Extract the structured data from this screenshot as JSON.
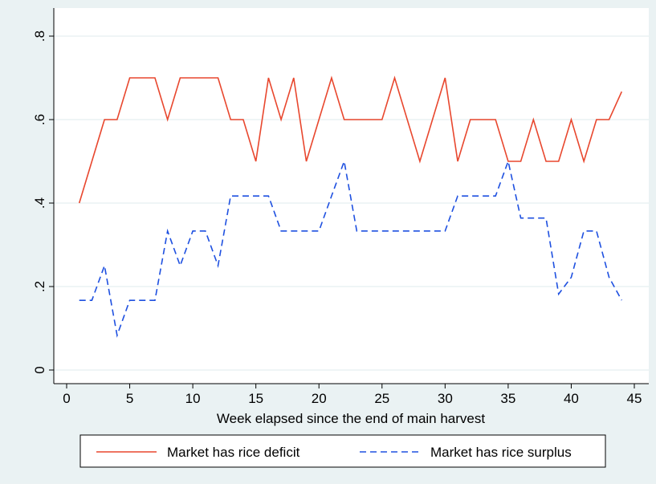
{
  "chart_data": {
    "type": "line",
    "x_label": "Week elapsed since the end of main harvest",
    "x": [
      1,
      2,
      3,
      4,
      5,
      6,
      7,
      8,
      9,
      10,
      11,
      12,
      13,
      14,
      15,
      16,
      17,
      18,
      19,
      20,
      21,
      22,
      23,
      24,
      25,
      26,
      27,
      28,
      29,
      30,
      31,
      32,
      33,
      34,
      35,
      36,
      37,
      38,
      39,
      40,
      41,
      42,
      43,
      44
    ],
    "series": [
      {
        "name": "Market has rice deficit",
        "color": "#e8472e",
        "dash": "solid",
        "values": [
          0.4,
          0.5,
          0.6,
          0.6,
          0.7,
          0.7,
          0.7,
          0.6,
          0.7,
          0.7,
          0.7,
          0.7,
          0.6,
          0.6,
          0.5,
          0.7,
          0.6,
          0.7,
          0.5,
          0.6,
          0.7,
          0.6,
          0.6,
          0.6,
          0.6,
          0.7,
          0.6,
          0.5,
          0.6,
          0.7,
          0.5,
          0.6,
          0.6,
          0.6,
          0.5,
          0.5,
          0.6,
          0.5,
          0.5,
          0.6,
          0.5,
          0.6,
          0.6,
          0.667
        ]
      },
      {
        "name": "Market has rice surplus",
        "color": "#1e50e0",
        "dash": "dashed",
        "values": [
          0.167,
          0.167,
          0.25,
          0.083,
          0.167,
          0.167,
          0.167,
          0.333,
          0.25,
          0.333,
          0.333,
          0.25,
          0.417,
          0.417,
          0.417,
          0.417,
          0.333,
          0.333,
          0.333,
          0.333,
          0.417,
          0.5,
          0.333,
          0.333,
          0.333,
          0.333,
          0.333,
          0.333,
          0.333,
          0.333,
          0.417,
          0.417,
          0.417,
          0.417,
          0.5,
          0.364,
          0.364,
          0.364,
          0.182,
          0.222,
          0.333,
          0.333,
          0.222,
          0.167
        ]
      }
    ],
    "xlim": [
      0,
      45
    ],
    "xticks": [
      0,
      5,
      10,
      15,
      20,
      25,
      30,
      35,
      40,
      45
    ],
    "ylim": [
      0,
      0.8
    ],
    "yticks": [
      0,
      {
        "value": 0.2,
        "label": ".2"
      },
      {
        "value": 0.4,
        "label": ".4"
      },
      {
        "value": 0.6,
        "label": ".6"
      },
      {
        "value": 0.8,
        "label": ".8"
      }
    ],
    "grid": true,
    "legend": "bottom"
  }
}
